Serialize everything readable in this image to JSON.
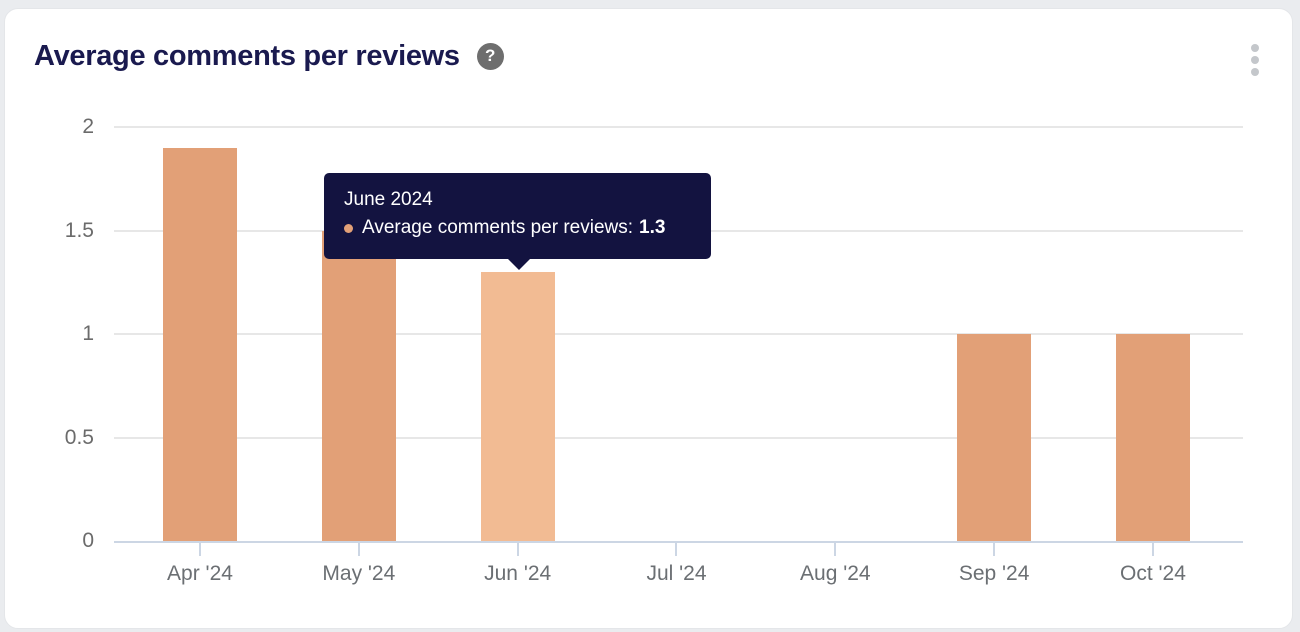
{
  "card": {
    "title": "Average comments per reviews",
    "help_glyph": "?"
  },
  "tooltip": {
    "title": "June 2024",
    "series_label": "Average comments per reviews:",
    "value": "1.3",
    "bullet_color": "#e2a077"
  },
  "chart_data": {
    "type": "bar",
    "title": "Average comments per reviews",
    "categories": [
      "Apr '24",
      "May '24",
      "Jun '24",
      "Jul '24",
      "Aug '24",
      "Sep '24",
      "Oct '24"
    ],
    "values": [
      1.9,
      1.5,
      1.3,
      0,
      0,
      1.0,
      1.0
    ],
    "series_name": "Average comments per reviews",
    "highlighted_category": "Jun '24",
    "xlabel": "",
    "ylabel": "",
    "y_ticks": [
      0,
      0.5,
      1,
      1.5,
      2
    ],
    "ylim": [
      0,
      2
    ],
    "grid": true,
    "legend": false,
    "bar_color": "#e2a077",
    "bar_highlight_color": "#f2bb93",
    "gridline_color": "#e7e7e7",
    "axis_line_color": "#ccd6e4"
  }
}
